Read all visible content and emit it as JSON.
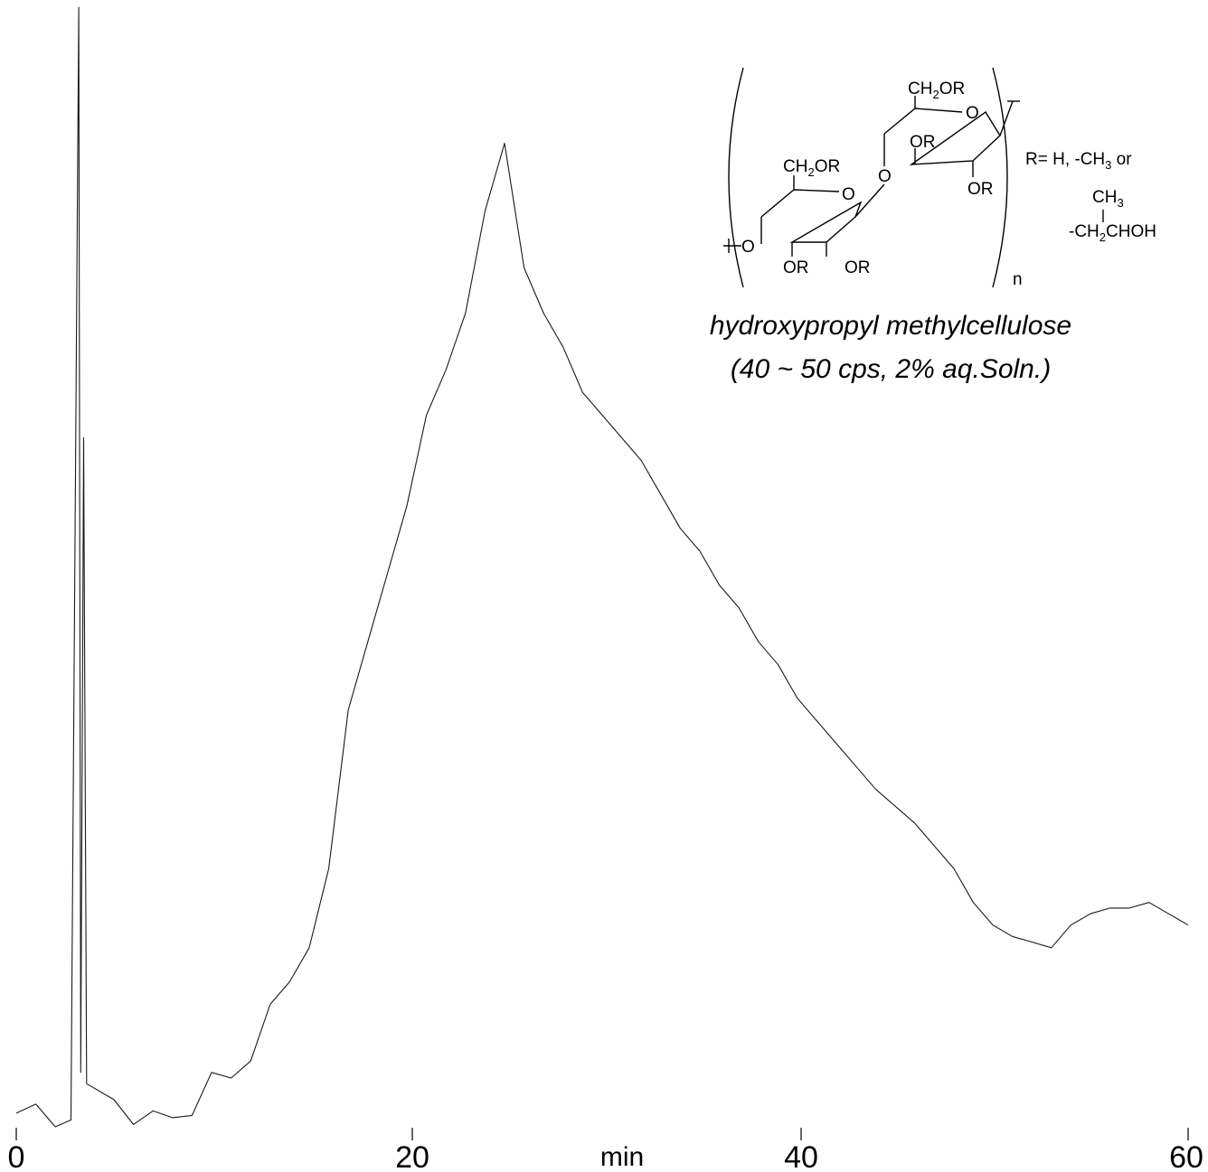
{
  "chart_data": {
    "type": "line",
    "title": "",
    "xlabel": "min",
    "ylabel": "",
    "xlim": [
      0,
      60
    ],
    "ylim": [
      0,
      100
    ],
    "x_ticks": [
      0,
      20,
      40,
      60
    ],
    "x_tick_labels": [
      "0",
      "20",
      "40",
      "60"
    ],
    "grid": false,
    "legend": "none",
    "line_color": "#1a1a1a",
    "series": [
      {
        "points": [
          [
            0.0,
            2.4
          ],
          [
            1.0,
            3.2
          ],
          [
            2.0,
            1.2
          ],
          [
            2.8,
            1.8
          ],
          [
            3.2,
            100.0
          ],
          [
            3.3,
            6.0
          ],
          [
            3.45,
            62.0
          ],
          [
            3.6,
            5.0
          ],
          [
            4.0,
            4.6
          ],
          [
            5.0,
            3.6
          ],
          [
            6.0,
            1.4
          ],
          [
            7.0,
            2.6
          ],
          [
            8.0,
            2.0
          ],
          [
            9.0,
            2.2
          ],
          [
            10.0,
            6.0
          ],
          [
            11.0,
            5.5
          ],
          [
            12.0,
            7.0
          ],
          [
            13.0,
            12.0
          ],
          [
            14.0,
            14.0
          ],
          [
            15.0,
            17.0
          ],
          [
            16.0,
            24.0
          ],
          [
            17.0,
            38.0
          ],
          [
            18.0,
            44.0
          ],
          [
            19.0,
            50.0
          ],
          [
            20.0,
            56.0
          ],
          [
            21.0,
            64.0
          ],
          [
            22.0,
            68.0
          ],
          [
            23.0,
            73.0
          ],
          [
            24.0,
            82.0
          ],
          [
            25.0,
            88.0
          ],
          [
            26.0,
            77.0
          ],
          [
            27.0,
            73.0
          ],
          [
            28.0,
            70.0
          ],
          [
            29.0,
            66.0
          ],
          [
            30.0,
            64.0
          ],
          [
            31.0,
            62.0
          ],
          [
            32.0,
            60.0
          ],
          [
            33.0,
            57.0
          ],
          [
            34.0,
            54.0
          ],
          [
            35.0,
            52.0
          ],
          [
            36.0,
            49.0
          ],
          [
            37.0,
            47.0
          ],
          [
            38.0,
            44.0
          ],
          [
            39.0,
            42.0
          ],
          [
            40.0,
            39.0
          ],
          [
            41.0,
            37.0
          ],
          [
            42.0,
            35.0
          ],
          [
            43.0,
            33.0
          ],
          [
            44.0,
            31.0
          ],
          [
            45.0,
            29.5
          ],
          [
            46.0,
            28.0
          ],
          [
            47.0,
            26.0
          ],
          [
            48.0,
            24.0
          ],
          [
            49.0,
            21.0
          ],
          [
            50.0,
            19.0
          ],
          [
            51.0,
            18.0
          ],
          [
            52.0,
            17.5
          ],
          [
            53.0,
            17.0
          ],
          [
            54.0,
            19.0
          ],
          [
            55.0,
            20.0
          ],
          [
            56.0,
            20.5
          ],
          [
            57.0,
            20.5
          ],
          [
            58.0,
            21.0
          ],
          [
            59.0,
            20.0
          ],
          [
            60.0,
            19.0
          ]
        ]
      }
    ]
  },
  "annotation": {
    "ch2or_top": "CH",
    "ch2or_top_sub": "2",
    "ch2or_top_tail": "OR",
    "ch2or_left": "CH",
    "ch2or_left_sub": "2",
    "ch2or_left_tail": "OR",
    "ring_o_right": "O",
    "ring_o_left": "O",
    "bridge_o": "O",
    "end_o": "O",
    "or_1": "OR",
    "or_2": "OR",
    "or_3": "OR",
    "or_4": "OR",
    "r_def_1": "R= H, -CH",
    "r_def_1_sub": "3",
    "r_def_1_tail": " or",
    "r_def_2": "CH",
    "r_def_2_sub": "3",
    "r_def_3": "-CH",
    "r_def_3_sub": "2",
    "r_def_3_tail": "CHOH",
    "n_label": "n",
    "caption_line1": "hydroxypropyl methylcellulose",
    "caption_line2": "(40 ~ 50 cps, 2% aq.Soln.)"
  }
}
